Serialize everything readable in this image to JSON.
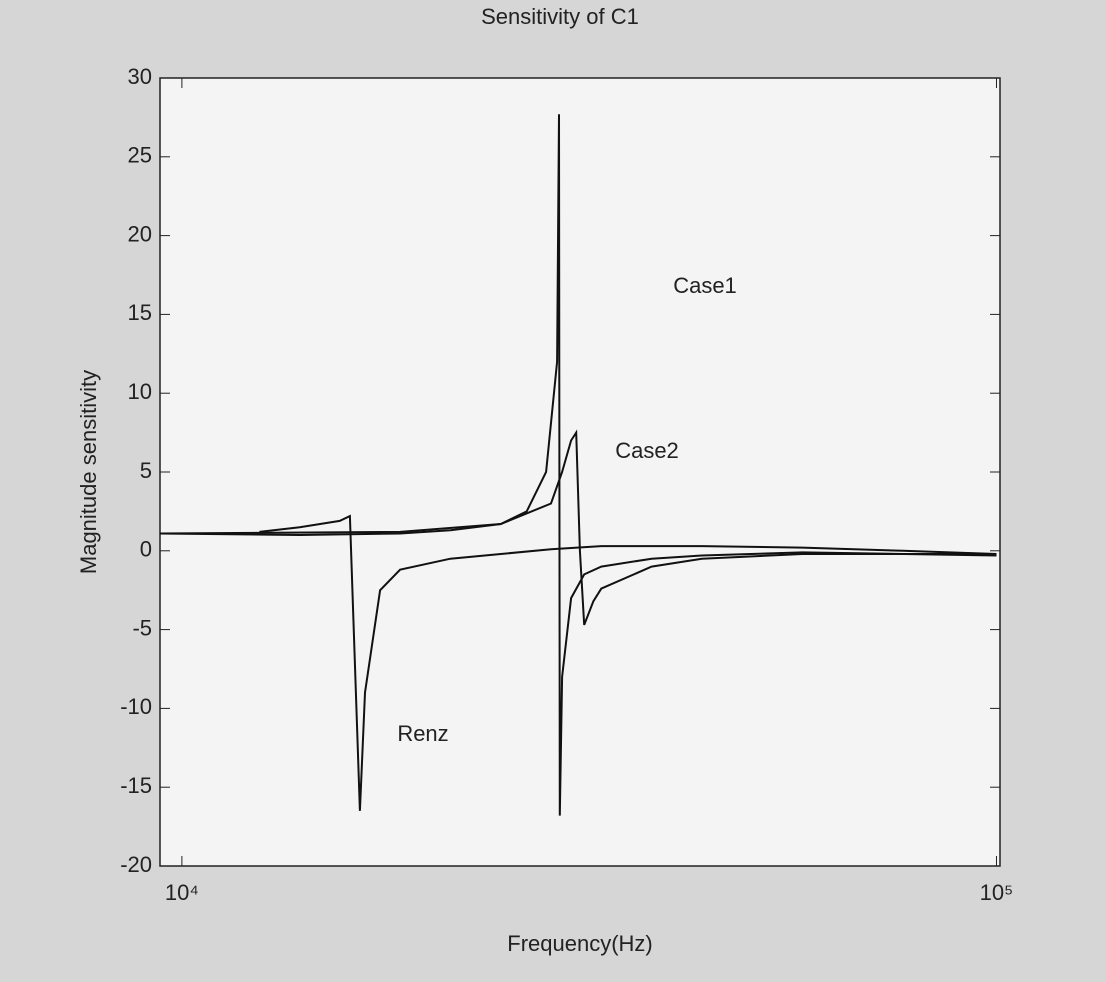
{
  "chart_data": {
    "type": "line",
    "title": "Sensitivity of C1",
    "x_label": "Frequency(Hz)",
    "y_label": "Magnitude sensitivity",
    "x_scale": "log",
    "xlim": [
      9400,
      101000
    ],
    "ylim": [
      -20,
      30
    ],
    "xticks": [
      {
        "value": 10000,
        "label": "10⁴"
      },
      {
        "value": 100000,
        "label": "10⁵"
      }
    ],
    "yticks": [
      -20,
      -15,
      -10,
      -5,
      0,
      5,
      10,
      15,
      20,
      25,
      30
    ],
    "grid": false,
    "series": [
      {
        "name": "Case1",
        "color": "#111111",
        "x": [
          9400,
          13950,
          18530,
          21360,
          24630,
          26500,
          28000,
          28880,
          29040,
          29100,
          29290,
          30050,
          31180,
          32720,
          37720,
          43480,
          57770,
          76780,
          100000
        ],
        "values": [
          1.1,
          1.0,
          1.1,
          1.3,
          1.7,
          2.5,
          5,
          12,
          27.7,
          -16.8,
          -8,
          -3,
          -1.5,
          -1,
          -0.5,
          -0.3,
          -0.1,
          -0.2,
          -0.3
        ]
      },
      {
        "name": "Case2",
        "color": "#111111",
        "x": [
          9400,
          18530,
          24630,
          28390,
          29290,
          30050,
          30480,
          30800,
          31180,
          32000,
          32720,
          37720,
          43480,
          57770,
          100000
        ],
        "values": [
          1.1,
          1.2,
          1.7,
          3,
          5,
          7,
          7.5,
          0,
          -4.7,
          -3.2,
          -2.4,
          -1.0,
          -0.5,
          -0.2,
          -0.2
        ]
      },
      {
        "name": "Renz",
        "color": "#111111",
        "x": [
          12450,
          13950,
          15620,
          16080,
          16540,
          16780,
          17510,
          18530,
          21360,
          24630,
          28390,
          32720,
          43480,
          57770,
          76780,
          100000
        ],
        "values": [
          1.2,
          1.5,
          1.9,
          2.2,
          -16.5,
          -9,
          -2.5,
          -1.2,
          -0.5,
          -0.2,
          0.1,
          0.3,
          0.3,
          0.2,
          0.0,
          -0.2
        ]
      }
    ]
  }
}
